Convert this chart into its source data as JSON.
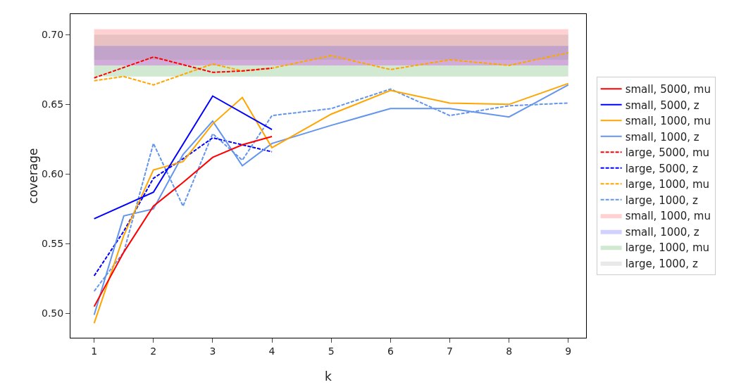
{
  "chart_data": {
    "type": "line",
    "xlabel": "k",
    "ylabel": "coverage",
    "xlim": [
      0.6,
      9.3
    ],
    "ylim": [
      0.4826,
      0.7148
    ],
    "xticks": [
      1,
      2,
      3,
      4,
      5,
      6,
      7,
      8,
      9
    ],
    "yticks": [
      {
        "value": 0.5,
        "label": "0.50"
      },
      {
        "value": 0.55,
        "label": "0.55"
      },
      {
        "value": 0.6,
        "label": "0.60"
      },
      {
        "value": 0.65,
        "label": "0.65"
      },
      {
        "value": 0.7,
        "label": "0.70"
      }
    ],
    "grid": false,
    "legend": "right",
    "marker": "none",
    "bands": [
      {
        "axis": "y",
        "from": 0.678,
        "to": 0.704,
        "label": "small, 1000, mu",
        "color": "#ff0000"
      },
      {
        "axis": "y",
        "from": 0.678,
        "to": 0.692,
        "label": "small, 1000, z",
        "color": "#0000ff"
      },
      {
        "axis": "y",
        "from": 0.67,
        "to": 0.678,
        "label": "large, 1000, mu",
        "color": "#008000"
      },
      {
        "axis": "y",
        "from": 0.682,
        "to": 0.7,
        "label": "large, 1000, z",
        "color": "#808080"
      }
    ],
    "series": [
      {
        "name": "small, 5000, mu",
        "color": "#ff0000",
        "line_style": "solid",
        "x": [
          1,
          1.5,
          2,
          2.5,
          3,
          3.5,
          4
        ],
        "values": [
          0.505,
          0.544,
          0.577,
          0.594,
          0.612,
          0.621,
          0.627
        ]
      },
      {
        "name": "small, 5000, z",
        "color": "#0000ff",
        "line_style": "solid",
        "x": [
          1,
          2,
          3,
          4
        ],
        "values": [
          0.568,
          0.587,
          0.656,
          0.632
        ]
      },
      {
        "name": "small, 1000, mu",
        "color": "#ffa500",
        "line_style": "solid",
        "x": [
          1,
          1.5,
          2,
          2.5,
          3,
          3.5,
          4,
          5,
          6,
          7,
          8,
          9
        ],
        "values": [
          0.493,
          0.556,
          0.603,
          0.609,
          0.636,
          0.655,
          0.619,
          0.643,
          0.66,
          0.651,
          0.65,
          0.665
        ]
      },
      {
        "name": "small, 1000, z",
        "color": "#6495ed",
        "line_style": "solid",
        "x": [
          1,
          1.5,
          2,
          2.5,
          3,
          3.5,
          4,
          5,
          6,
          7,
          8,
          9
        ],
        "values": [
          0.499,
          0.57,
          0.575,
          0.614,
          0.638,
          0.606,
          0.622,
          0.635,
          0.647,
          0.647,
          0.641,
          0.664
        ]
      },
      {
        "name": "large, 5000, mu",
        "color": "#ff0000",
        "line_style": "dashed",
        "x": [
          1,
          2,
          3,
          3.5,
          4
        ],
        "values": [
          0.669,
          0.684,
          0.673,
          0.674,
          0.676
        ]
      },
      {
        "name": "large, 5000, z",
        "color": "#0000ff",
        "line_style": "dashed",
        "x": [
          1,
          1.5,
          2,
          2.5,
          3,
          3.5,
          4
        ],
        "values": [
          0.527,
          0.559,
          0.597,
          0.611,
          0.626,
          0.621,
          0.616
        ]
      },
      {
        "name": "large, 1000, mu",
        "color": "#ffa500",
        "line_style": "dashed",
        "x": [
          1,
          1.5,
          2,
          3,
          3.5,
          4,
          5,
          6,
          7,
          8,
          9
        ],
        "values": [
          0.667,
          0.67,
          0.664,
          0.679,
          0.674,
          0.676,
          0.685,
          0.675,
          0.682,
          0.678,
          0.687
        ]
      },
      {
        "name": "large, 1000, z",
        "color": "#6495ed",
        "line_style": "dashed",
        "x": [
          1,
          1.5,
          2,
          2.5,
          3,
          3.5,
          4,
          5,
          6,
          7,
          8,
          9
        ],
        "values": [
          0.516,
          0.544,
          0.622,
          0.577,
          0.629,
          0.61,
          0.642,
          0.647,
          0.661,
          0.642,
          0.649,
          0.651
        ]
      }
    ]
  }
}
